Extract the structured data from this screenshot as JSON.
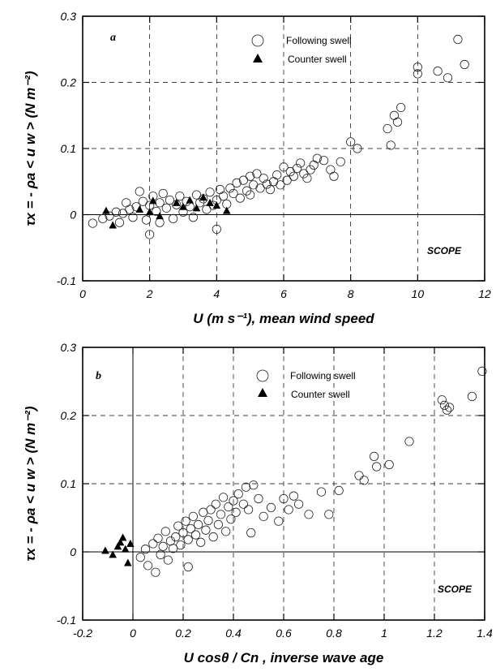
{
  "colors": {
    "axis": "#000000",
    "following_marker": "#222222",
    "counter_marker": "#000000"
  },
  "chart_data": [
    {
      "type": "scatter",
      "panel_label": "a",
      "annotation": "SCOPE",
      "xlabel": "U (m s⁻¹),  mean wind speed",
      "ylabel": "τx = - ρa < u w >  (N m⁻²)",
      "xlim": [
        0,
        12
      ],
      "ylim": [
        -0.1,
        0.3
      ],
      "xticks": [
        0,
        2,
        4,
        6,
        8,
        10,
        12
      ],
      "xtick_labels": [
        "0",
        "2",
        "4",
        "6",
        "8",
        "10",
        "12"
      ],
      "yticks": [
        -0.1,
        0,
        0.1,
        0.2,
        0.3
      ],
      "ytick_labels": [
        "-0.1",
        "0",
        "0.1",
        "0.2",
        "0.3"
      ],
      "grid": true,
      "legend_position": "top-center",
      "series": [
        {
          "name": "Following swell",
          "marker": "open-circle",
          "points": [
            [
              0.3,
              -0.013
            ],
            [
              0.6,
              -0.006
            ],
            [
              0.8,
              -0.002
            ],
            [
              1.0,
              0.004
            ],
            [
              1.1,
              -0.012
            ],
            [
              1.2,
              0.002
            ],
            [
              1.3,
              0.018
            ],
            [
              1.4,
              0.008
            ],
            [
              1.5,
              -0.004
            ],
            [
              1.6,
              0.012
            ],
            [
              1.7,
              0.035
            ],
            [
              1.8,
              0.02
            ],
            [
              1.9,
              -0.008
            ],
            [
              2.0,
              0.014
            ],
            [
              2.0,
              -0.03
            ],
            [
              2.1,
              0.028
            ],
            [
              2.2,
              0.005
            ],
            [
              2.3,
              0.018
            ],
            [
              2.3,
              -0.012
            ],
            [
              2.4,
              0.032
            ],
            [
              2.5,
              0.01
            ],
            [
              2.6,
              0.022
            ],
            [
              2.7,
              -0.006
            ],
            [
              2.8,
              0.015
            ],
            [
              2.9,
              0.028
            ],
            [
              3.0,
              0.004
            ],
            [
              3.1,
              0.02
            ],
            [
              3.2,
              0.012
            ],
            [
              3.3,
              -0.004
            ],
            [
              3.4,
              0.03
            ],
            [
              3.5,
              0.018
            ],
            [
              3.6,
              0.024
            ],
            [
              3.7,
              0.008
            ],
            [
              3.8,
              0.034
            ],
            [
              3.9,
              0.014
            ],
            [
              4.0,
              0.022
            ],
            [
              4.0,
              -0.022
            ],
            [
              4.1,
              0.038
            ],
            [
              4.2,
              0.028
            ],
            [
              4.3,
              0.016
            ],
            [
              4.4,
              0.04
            ],
            [
              4.5,
              0.032
            ],
            [
              4.6,
              0.048
            ],
            [
              4.7,
              0.025
            ],
            [
              4.8,
              0.052
            ],
            [
              4.9,
              0.036
            ],
            [
              5.0,
              0.058
            ],
            [
              5.0,
              0.03
            ],
            [
              5.1,
              0.045
            ],
            [
              5.2,
              0.062
            ],
            [
              5.3,
              0.04
            ],
            [
              5.4,
              0.055
            ],
            [
              5.5,
              0.046
            ],
            [
              5.6,
              0.038
            ],
            [
              5.7,
              0.05
            ],
            [
              5.8,
              0.06
            ],
            [
              5.9,
              0.045
            ],
            [
              6.0,
              0.072
            ],
            [
              6.1,
              0.052
            ],
            [
              6.2,
              0.065
            ],
            [
              6.3,
              0.058
            ],
            [
              6.4,
              0.07
            ],
            [
              6.5,
              0.078
            ],
            [
              6.6,
              0.062
            ],
            [
              6.7,
              0.055
            ],
            [
              6.8,
              0.068
            ],
            [
              6.9,
              0.075
            ],
            [
              7.0,
              0.085
            ],
            [
              7.2,
              0.082
            ],
            [
              7.4,
              0.068
            ],
            [
              7.5,
              0.058
            ],
            [
              7.7,
              0.08
            ],
            [
              8.0,
              0.11
            ],
            [
              8.2,
              0.1
            ],
            [
              9.1,
              0.13
            ],
            [
              9.2,
              0.105
            ],
            [
              9.3,
              0.15
            ],
            [
              9.4,
              0.14
            ],
            [
              9.5,
              0.162
            ],
            [
              10.0,
              0.223
            ],
            [
              10.0,
              0.213
            ],
            [
              10.6,
              0.217
            ],
            [
              10.9,
              0.207
            ],
            [
              11.2,
              0.265
            ],
            [
              11.4,
              0.227
            ]
          ]
        },
        {
          "name": "Counter swell",
          "marker": "filled-triangle",
          "points": [
            [
              0.7,
              0.006
            ],
            [
              0.9,
              -0.016
            ],
            [
              1.7,
              0.008
            ],
            [
              2.0,
              0.004
            ],
            [
              2.1,
              0.021
            ],
            [
              2.3,
              -0.002
            ],
            [
              2.8,
              0.018
            ],
            [
              3.0,
              0.012
            ],
            [
              3.2,
              0.022
            ],
            [
              3.4,
              0.01
            ],
            [
              3.6,
              0.026
            ],
            [
              3.8,
              0.018
            ],
            [
              4.0,
              0.014
            ],
            [
              4.3,
              0.006
            ]
          ]
        }
      ]
    },
    {
      "type": "scatter",
      "panel_label": "b",
      "annotation": "SCOPE",
      "xlabel": "U cosθ / Cn ,  inverse wave age",
      "ylabel": "τx = - ρa < u w >  (N m⁻²)",
      "xlim": [
        -0.2,
        1.4
      ],
      "ylim": [
        -0.1,
        0.3
      ],
      "xticks": [
        -0.2,
        0,
        0.2,
        0.4,
        0.6,
        0.8,
        1,
        1.2,
        1.4
      ],
      "xtick_labels": [
        "-0.2",
        "0",
        "0.2",
        "0.4",
        "0.6",
        "0.8",
        "1",
        "1.2",
        "1.4"
      ],
      "yticks": [
        -0.1,
        0,
        0.1,
        0.2,
        0.3
      ],
      "ytick_labels": [
        "-0.1",
        "0",
        "0.1",
        "0.2",
        "0.3"
      ],
      "grid": true,
      "legend_position": "top-center",
      "series": [
        {
          "name": "Following swell",
          "marker": "open-circle",
          "points": [
            [
              0.03,
              -0.008
            ],
            [
              0.05,
              0.004
            ],
            [
              0.06,
              -0.02
            ],
            [
              0.08,
              0.012
            ],
            [
              0.09,
              -0.03
            ],
            [
              0.1,
              0.02
            ],
            [
              0.11,
              -0.004
            ],
            [
              0.12,
              0.008
            ],
            [
              0.13,
              0.03
            ],
            [
              0.14,
              -0.012
            ],
            [
              0.15,
              0.016
            ],
            [
              0.16,
              0.005
            ],
            [
              0.17,
              0.022
            ],
            [
              0.18,
              0.038
            ],
            [
              0.19,
              0.01
            ],
            [
              0.2,
              0.028
            ],
            [
              0.21,
              0.045
            ],
            [
              0.22,
              0.018
            ],
            [
              0.22,
              -0.022
            ],
            [
              0.23,
              0.034
            ],
            [
              0.24,
              0.052
            ],
            [
              0.25,
              0.025
            ],
            [
              0.26,
              0.04
            ],
            [
              0.27,
              0.014
            ],
            [
              0.28,
              0.058
            ],
            [
              0.29,
              0.032
            ],
            [
              0.3,
              0.046
            ],
            [
              0.31,
              0.062
            ],
            [
              0.32,
              0.022
            ],
            [
              0.33,
              0.07
            ],
            [
              0.34,
              0.04
            ],
            [
              0.35,
              0.055
            ],
            [
              0.36,
              0.08
            ],
            [
              0.37,
              0.03
            ],
            [
              0.38,
              0.066
            ],
            [
              0.39,
              0.048
            ],
            [
              0.4,
              0.075
            ],
            [
              0.41,
              0.058
            ],
            [
              0.42,
              0.085
            ],
            [
              0.44,
              0.07
            ],
            [
              0.45,
              0.095
            ],
            [
              0.46,
              0.062
            ],
            [
              0.47,
              0.028
            ],
            [
              0.48,
              0.098
            ],
            [
              0.5,
              0.078
            ],
            [
              0.52,
              0.052
            ],
            [
              0.55,
              0.065
            ],
            [
              0.58,
              0.045
            ],
            [
              0.6,
              0.078
            ],
            [
              0.62,
              0.062
            ],
            [
              0.64,
              0.082
            ],
            [
              0.66,
              0.07
            ],
            [
              0.7,
              0.055
            ],
            [
              0.75,
              0.088
            ],
            [
              0.78,
              0.055
            ],
            [
              0.82,
              0.09
            ],
            [
              0.9,
              0.112
            ],
            [
              0.92,
              0.105
            ],
            [
              0.96,
              0.14
            ],
            [
              0.97,
              0.125
            ],
            [
              1.02,
              0.128
            ],
            [
              1.1,
              0.162
            ],
            [
              1.23,
              0.223
            ],
            [
              1.24,
              0.215
            ],
            [
              1.25,
              0.208
            ],
            [
              1.26,
              0.212
            ],
            [
              1.35,
              0.228
            ],
            [
              1.39,
              0.265
            ]
          ]
        },
        {
          "name": "Counter swell",
          "marker": "filled-triangle",
          "points": [
            [
              -0.11,
              0.002
            ],
            [
              -0.08,
              -0.004
            ],
            [
              -0.06,
              0.008
            ],
            [
              -0.05,
              0.014
            ],
            [
              -0.04,
              0.021
            ],
            [
              -0.03,
              0.004
            ],
            [
              -0.02,
              -0.016
            ],
            [
              -0.01,
              0.012
            ]
          ]
        }
      ]
    }
  ]
}
